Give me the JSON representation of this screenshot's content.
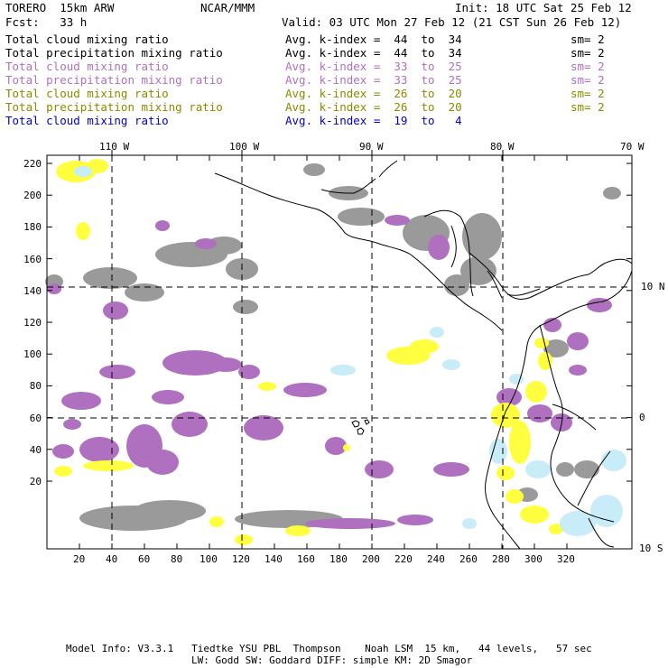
{
  "header": {
    "model": "TORERO  15km ARW",
    "center": "NCAR/MMM",
    "init": "Init: 18 UTC Sat 25 Feb 12",
    "fcst": "Fcst:   33 h",
    "valid": "Valid: 03 UTC Mon 27 Feb 12 (21 CST Sun 26 Feb 12)"
  },
  "legend_rows": [
    {
      "field": "Total cloud mixing ratio",
      "kidx": "Avg. k-index =  44  to  34",
      "sm": "sm= 2",
      "color": "#000000"
    },
    {
      "field": "Total precipitation mixing ratio",
      "kidx": "Avg. k-index =  44  to  34",
      "sm": "sm= 2",
      "color": "#000000"
    },
    {
      "field": "Total cloud mixing ratio",
      "kidx": "Avg. k-index =  33  to  25",
      "sm": "sm= 2",
      "color": "#b070c0"
    },
    {
      "field": "Total precipitation mixing ratio",
      "kidx": "Avg. k-index =  33  to  25",
      "sm": "sm= 2",
      "color": "#b070c0"
    },
    {
      "field": "Total cloud mixing ratio",
      "kidx": "Avg. k-index =  26  to  20",
      "sm": "sm= 2",
      "color": "#8a8a00"
    },
    {
      "field": "Total precipitation mixing ratio",
      "kidx": "Avg. k-index =  26  to  20",
      "sm": "sm= 2",
      "color": "#8a8a00"
    },
    {
      "field": "Total cloud mixing ratio",
      "kidx": "Avg. k-index =  19  to   4",
      "sm": "",
      "color": "#0000c8"
    }
  ],
  "axes": {
    "top_labels": [
      "110 W",
      "100 W",
      "90 W",
      "80 W",
      "70 W"
    ],
    "right_labels": [
      "10 N",
      "0",
      "10 S"
    ],
    "y_ticks": [
      "220",
      "200",
      "180",
      "160",
      "140",
      "120",
      "100",
      "80",
      "60",
      "40",
      "20"
    ],
    "x_ticks": [
      "20",
      "40",
      "60",
      "80",
      "100",
      "120",
      "140",
      "160",
      "180",
      "200",
      "220",
      "240",
      "260",
      "280",
      "300",
      "320"
    ]
  },
  "footer": {
    "line1": "Model Info: V3.3.1   Tiedtke YSU PBL  Thompson    Noah LSM  15 km,   44 levels,   57 sec",
    "line2": "LW: Godd SW: Goddard DIFF: simple KM: 2D Smagor"
  },
  "colors": {
    "gray": "#9a9a9a",
    "purple": "#b070c0",
    "yellow": "#ffff40",
    "lightblue": "#c8ecf8"
  }
}
